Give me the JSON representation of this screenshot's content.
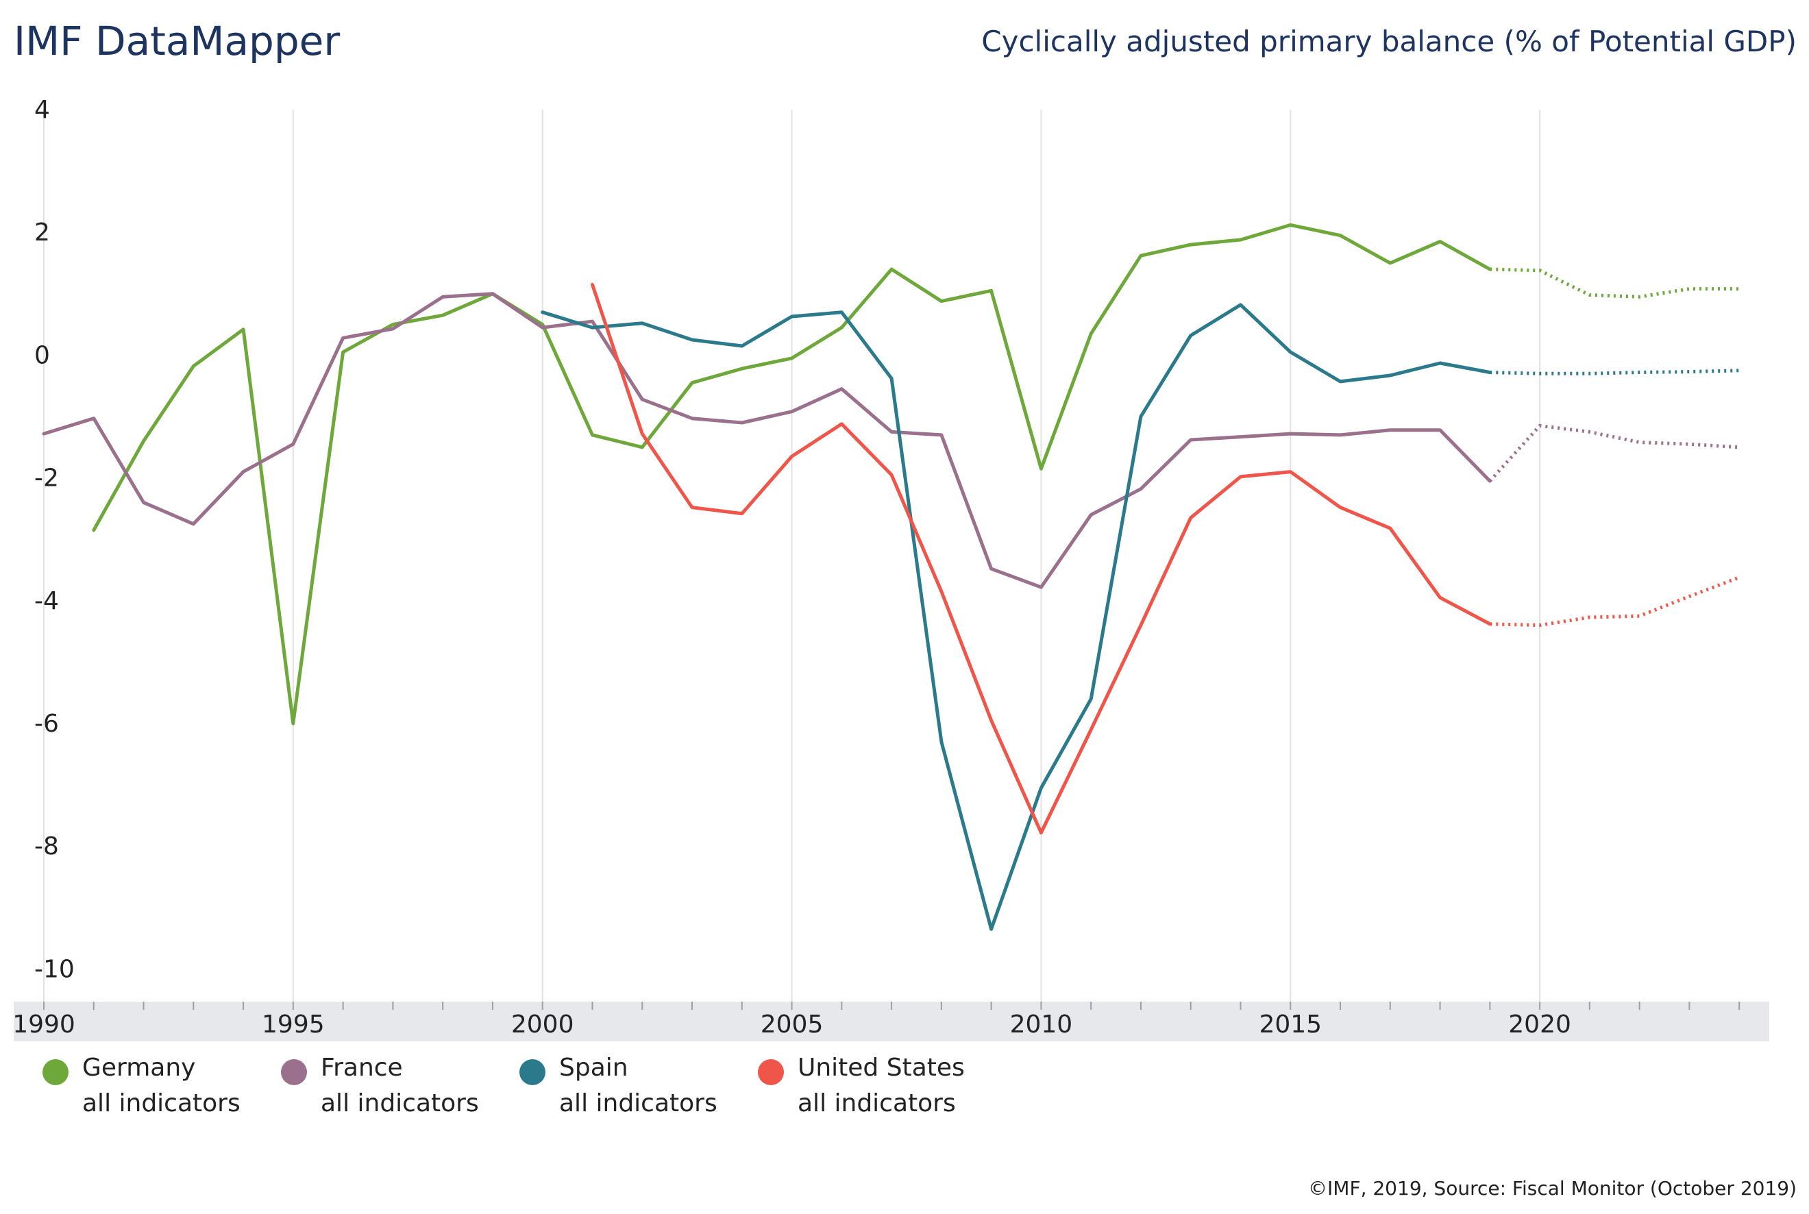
{
  "header": {
    "brand": "IMF DataMapper",
    "title": "Cyclically adjusted primary balance (% of Potential GDP)"
  },
  "footer": {
    "credit": "©IMF, 2019, Source: Fiscal Monitor (October 2019)"
  },
  "colors": {
    "grid": "#e2e2e2",
    "axis_band": "#e6e8ec",
    "text": "#222222",
    "title": "#1d3461"
  },
  "chart_data": {
    "type": "line",
    "title": "Cyclically adjusted primary balance (% of Potential GDP)",
    "xlabel": "",
    "ylabel": "",
    "xlim": [
      1990,
      2024
    ],
    "ylim": [
      -10,
      4
    ],
    "x_ticks": [
      1990,
      1995,
      2000,
      2005,
      2010,
      2015,
      2020
    ],
    "y_ticks": [
      4,
      2,
      0,
      -2,
      -4,
      -6,
      -8,
      -10
    ],
    "grid": "vertical",
    "legend": "bottom",
    "projection_start": 2019,
    "series": [
      {
        "name": "Germany",
        "sub": "all indicators",
        "color": "#6fa83a",
        "points": [
          [
            1991,
            -2.85
          ],
          [
            1992,
            -1.4
          ],
          [
            1993,
            -0.18
          ],
          [
            1994,
            0.42
          ],
          [
            1995,
            -6.0
          ],
          [
            1996,
            0.05
          ],
          [
            1997,
            0.5
          ],
          [
            1998,
            0.65
          ],
          [
            1999,
            1.0
          ],
          [
            2000,
            0.5
          ],
          [
            2001,
            -1.3
          ],
          [
            2002,
            -1.5
          ],
          [
            2003,
            -0.45
          ],
          [
            2004,
            -0.22
          ],
          [
            2005,
            -0.05
          ],
          [
            2006,
            0.45
          ],
          [
            2007,
            1.4
          ],
          [
            2008,
            0.88
          ],
          [
            2009,
            1.05
          ],
          [
            2010,
            -1.85
          ],
          [
            2011,
            0.35
          ],
          [
            2012,
            1.62
          ],
          [
            2013,
            1.8
          ],
          [
            2014,
            1.88
          ],
          [
            2015,
            2.12
          ],
          [
            2016,
            1.95
          ],
          [
            2017,
            1.5
          ],
          [
            2018,
            1.85
          ],
          [
            2019,
            1.4
          ],
          [
            2020,
            1.38
          ],
          [
            2021,
            0.98
          ],
          [
            2022,
            0.95
          ],
          [
            2023,
            1.08
          ],
          [
            2024,
            1.08
          ]
        ]
      },
      {
        "name": "France",
        "sub": "all indicators",
        "color": "#9a708c",
        "points": [
          [
            1990,
            -1.28
          ],
          [
            1991,
            -1.03
          ],
          [
            1992,
            -2.4
          ],
          [
            1993,
            -2.75
          ],
          [
            1994,
            -1.9
          ],
          [
            1995,
            -1.45
          ],
          [
            1996,
            0.28
          ],
          [
            1997,
            0.43
          ],
          [
            1998,
            0.95
          ],
          [
            1999,
            1.0
          ],
          [
            2000,
            0.45
          ],
          [
            2001,
            0.55
          ],
          [
            2002,
            -0.72
          ],
          [
            2003,
            -1.03
          ],
          [
            2004,
            -1.1
          ],
          [
            2005,
            -0.92
          ],
          [
            2006,
            -0.55
          ],
          [
            2007,
            -1.25
          ],
          [
            2008,
            -1.3
          ],
          [
            2009,
            -3.48
          ],
          [
            2010,
            -3.78
          ],
          [
            2011,
            -2.6
          ],
          [
            2012,
            -2.18
          ],
          [
            2013,
            -1.38
          ],
          [
            2014,
            -1.33
          ],
          [
            2015,
            -1.28
          ],
          [
            2016,
            -1.3
          ],
          [
            2017,
            -1.22
          ],
          [
            2018,
            -1.22
          ],
          [
            2019,
            -2.05
          ],
          [
            2020,
            -1.15
          ],
          [
            2021,
            -1.25
          ],
          [
            2022,
            -1.42
          ],
          [
            2023,
            -1.45
          ],
          [
            2024,
            -1.5
          ]
        ]
      },
      {
        "name": "Spain",
        "sub": "all indicators",
        "color": "#2a7a8c",
        "points": [
          [
            2000,
            0.7
          ],
          [
            2001,
            0.45
          ],
          [
            2002,
            0.52
          ],
          [
            2003,
            0.25
          ],
          [
            2004,
            0.15
          ],
          [
            2005,
            0.63
          ],
          [
            2006,
            0.7
          ],
          [
            2007,
            -0.38
          ],
          [
            2008,
            -6.3
          ],
          [
            2009,
            -9.35
          ],
          [
            2010,
            -7.05
          ],
          [
            2011,
            -5.6
          ],
          [
            2012,
            -1.0
          ],
          [
            2013,
            0.32
          ],
          [
            2014,
            0.82
          ],
          [
            2015,
            0.05
          ],
          [
            2016,
            -0.43
          ],
          [
            2017,
            -0.33
          ],
          [
            2018,
            -0.13
          ],
          [
            2019,
            -0.28
          ],
          [
            2020,
            -0.3
          ],
          [
            2021,
            -0.3
          ],
          [
            2022,
            -0.28
          ],
          [
            2023,
            -0.27
          ],
          [
            2024,
            -0.25
          ]
        ]
      },
      {
        "name": "United States",
        "sub": "all indicators",
        "color": "#f0554a",
        "points": [
          [
            2001,
            1.15
          ],
          [
            2002,
            -1.28
          ],
          [
            2003,
            -2.48
          ],
          [
            2004,
            -2.58
          ],
          [
            2005,
            -1.65
          ],
          [
            2006,
            -1.12
          ],
          [
            2007,
            -1.95
          ],
          [
            2008,
            -3.85
          ],
          [
            2009,
            -5.95
          ],
          [
            2010,
            -7.78
          ],
          [
            2011,
            -6.1
          ],
          [
            2012,
            -4.4
          ],
          [
            2013,
            -2.65
          ],
          [
            2014,
            -1.98
          ],
          [
            2015,
            -1.9
          ],
          [
            2016,
            -2.48
          ],
          [
            2017,
            -2.82
          ],
          [
            2018,
            -3.95
          ],
          [
            2019,
            -4.38
          ],
          [
            2020,
            -4.4
          ],
          [
            2021,
            -4.27
          ],
          [
            2022,
            -4.25
          ],
          [
            2023,
            -3.93
          ],
          [
            2024,
            -3.62
          ]
        ]
      }
    ]
  }
}
